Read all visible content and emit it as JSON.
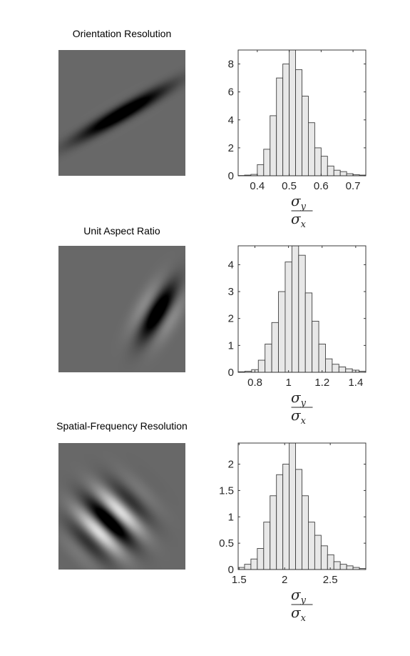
{
  "panels": [
    {
      "title": "Orientation Resolution",
      "image": {
        "orientation_deg": -30,
        "sigma_ratio": 0.5,
        "envelope_shift": [
          0,
          0
        ],
        "cycles": 1.2
      },
      "chart_data": {
        "type": "bar",
        "bin_edges": [
          0.34,
          0.36,
          0.38,
          0.4,
          0.42,
          0.44,
          0.46,
          0.48,
          0.5,
          0.52,
          0.54,
          0.56,
          0.58,
          0.6,
          0.62,
          0.64,
          0.66,
          0.68,
          0.7,
          0.72,
          0.74
        ],
        "values": [
          0.02,
          0.05,
          0.1,
          0.8,
          1.9,
          4.3,
          7.0,
          8.0,
          9.3,
          7.6,
          5.7,
          3.8,
          2.0,
          1.4,
          0.7,
          0.4,
          0.3,
          0.15,
          0.08,
          0.05
        ],
        "xlim": [
          0.34,
          0.74
        ],
        "ylim": [
          0,
          9
        ],
        "xticks": [
          0.4,
          0.5,
          0.6,
          0.7
        ],
        "xtick_labels": [
          "0.4",
          "0.5",
          "0.6",
          "0.7"
        ],
        "yticks": [
          0,
          2,
          4,
          6,
          8
        ],
        "ytick_labels": [
          "0",
          "2",
          "4",
          "6",
          "8"
        ],
        "xlabel_num": "σ",
        "xlabel_num_sub": "y",
        "xlabel_den": "σ",
        "xlabel_den_sub": "x"
      }
    },
    {
      "title": "Unit Aspect Ratio",
      "image": {
        "orientation_deg": -60,
        "sigma_ratio": 1.0,
        "envelope_shift": [
          0.28,
          0.02
        ],
        "cycles": 1.6
      },
      "chart_data": {
        "type": "bar",
        "bin_edges": [
          0.7,
          0.74,
          0.78,
          0.82,
          0.86,
          0.9,
          0.94,
          0.98,
          1.02,
          1.06,
          1.1,
          1.14,
          1.18,
          1.22,
          1.26,
          1.3,
          1.34,
          1.38,
          1.42,
          1.46
        ],
        "values": [
          0.02,
          0.04,
          0.1,
          0.45,
          1.05,
          1.85,
          3.0,
          4.1,
          4.7,
          4.35,
          2.95,
          1.9,
          1.05,
          0.5,
          0.3,
          0.2,
          0.13,
          0.08,
          0.04
        ],
        "xlim": [
          0.7,
          1.46
        ],
        "ylim": [
          0,
          4.7
        ],
        "xticks": [
          0.8,
          1.0,
          1.2,
          1.4
        ],
        "xtick_labels": [
          "0.8",
          "1",
          "1.2",
          "1.4"
        ],
        "yticks": [
          0,
          1,
          2,
          3,
          4
        ],
        "ytick_labels": [
          "0",
          "1",
          "2",
          "3",
          "4"
        ],
        "xlabel_num": "σ",
        "xlabel_num_sub": "y",
        "xlabel_den": "σ",
        "xlabel_den_sub": "x"
      }
    },
    {
      "title": "Spatial-Frequency Resolution",
      "image": {
        "orientation_deg": 45,
        "sigma_ratio": 2.0,
        "envelope_shift": [
          -0.1,
          0.12
        ],
        "cycles": 2.2
      },
      "chart_data": {
        "type": "bar",
        "bin_edges": [
          1.49,
          1.56,
          1.63,
          1.7,
          1.77,
          1.84,
          1.91,
          1.98,
          2.05,
          2.12,
          2.19,
          2.26,
          2.33,
          2.4,
          2.47,
          2.54,
          2.61,
          2.68,
          2.75,
          2.82,
          2.89
        ],
        "values": [
          0.04,
          0.1,
          0.2,
          0.4,
          0.9,
          1.4,
          1.8,
          2.0,
          2.4,
          1.9,
          1.4,
          0.9,
          0.65,
          0.45,
          0.28,
          0.15,
          0.1,
          0.07,
          0.04,
          0.02
        ],
        "xlim": [
          1.49,
          2.89
        ],
        "ylim": [
          0,
          2.4
        ],
        "xticks": [
          1.5,
          2.0,
          2.5
        ],
        "xtick_labels": [
          "1.5",
          "2",
          "2.5"
        ],
        "yticks": [
          0,
          0.5,
          1.0,
          1.5,
          2.0
        ],
        "ytick_labels": [
          "0",
          "0.5",
          "1",
          "1.5",
          "2"
        ],
        "xlabel_num": "σ",
        "xlabel_num_sub": "y",
        "xlabel_den": "σ",
        "xlabel_den_sub": "x"
      }
    }
  ]
}
